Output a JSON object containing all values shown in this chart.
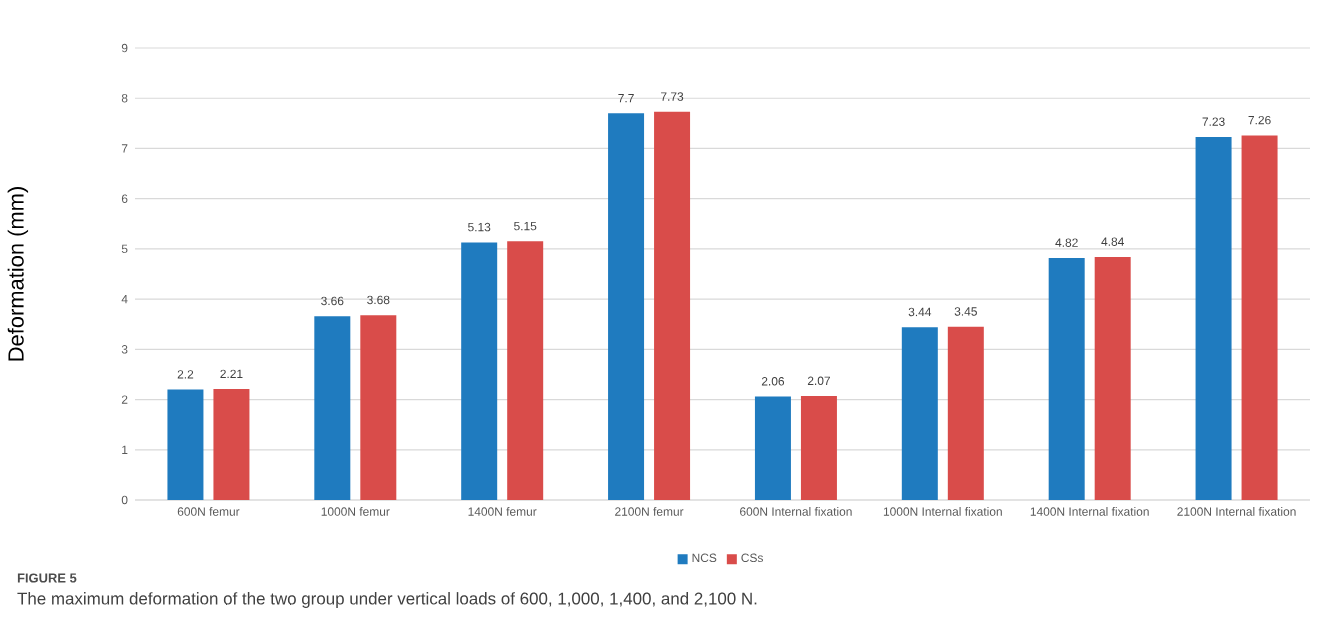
{
  "chart_data": {
    "type": "bar",
    "ylabel": "Deformation (mm)",
    "categories": [
      "600N femur",
      "1000N femur",
      "1400N femur",
      "2100N femur",
      "600N Internal fixation",
      "1000N Internal fixation",
      "1400N Internal fixation",
      "2100N Internal fixation"
    ],
    "series": [
      {
        "name": "NCS",
        "color": "#1f7bbf",
        "values": [
          2.2,
          3.66,
          5.13,
          7.7,
          2.06,
          3.44,
          4.82,
          7.23
        ]
      },
      {
        "name": "CSs",
        "color": "#d94c4a",
        "values": [
          2.21,
          3.68,
          5.15,
          7.73,
          2.07,
          3.45,
          4.84,
          7.26
        ]
      }
    ],
    "ylim": [
      0,
      9
    ],
    "yticks": [
      0,
      1,
      2,
      3,
      4,
      5,
      6,
      7,
      8,
      9
    ],
    "grid": "y",
    "legend": "bottom",
    "data_labels": true,
    "annotations": [
      "FIGURE 5",
      "The maximum deformation of the two group under vertical loads of 600, 1,000, 1,400, and 2,100 N."
    ]
  }
}
